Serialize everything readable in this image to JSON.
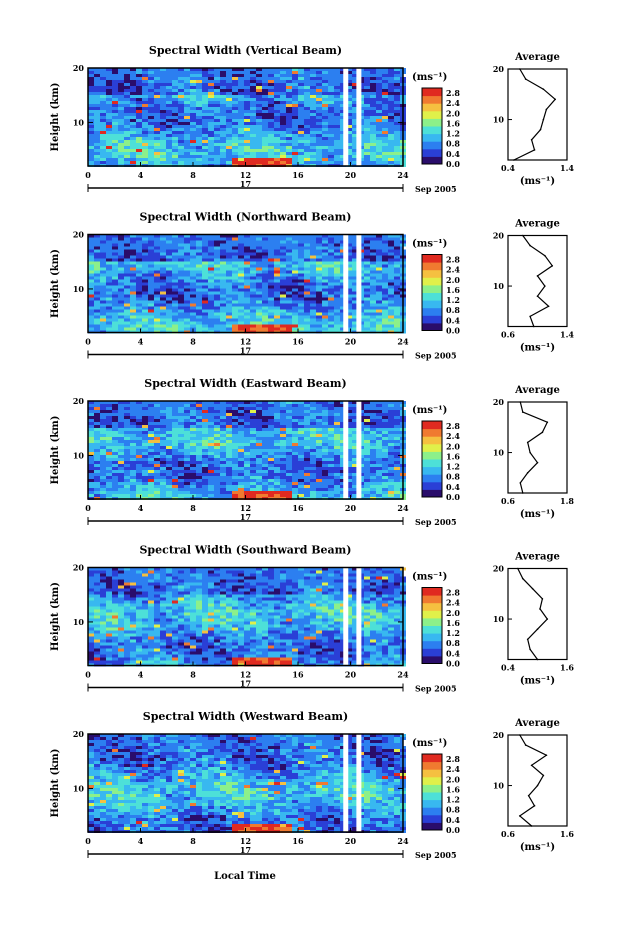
{
  "figure": {
    "xlabel": "Local Time",
    "ylabel": "Height (km)",
    "date_label": "17",
    "month_label": "Sep 2005",
    "colorbar_unit": "(ms⁻¹)",
    "colorbar_ticks": [
      "2.8",
      "2.4",
      "2.0",
      "1.6",
      "1.2",
      "0.8",
      "0.4",
      "0.0"
    ],
    "profile_title": "Average",
    "profile_xlabel": "(ms⁻¹)",
    "colormap": [
      "#2a0d6b",
      "#2a3fd6",
      "#2c7ff0",
      "#38b8f0",
      "#4de0d8",
      "#8cf08a",
      "#e0f04a",
      "#f5c040",
      "#f07a30",
      "#e02a20"
    ]
  },
  "chart_data": [
    {
      "type": "heatmap",
      "title": "Spectral Width (Vertical Beam)",
      "x": {
        "label": "Local Time",
        "range": [
          0,
          24
        ],
        "ticks": [
          0,
          4,
          8,
          12,
          16,
          20,
          24
        ]
      },
      "y": {
        "label": "Height (km)",
        "range": [
          2,
          20
        ],
        "ticks": [
          10,
          20
        ]
      },
      "colorbar": {
        "label": "(ms⁻¹)",
        "range": [
          0,
          3.0
        ],
        "ticks": [
          0.0,
          0.4,
          0.8,
          1.2,
          1.6,
          2.0,
          2.4,
          2.8
        ]
      },
      "data_gap_hours": [
        19.6,
        20.6
      ],
      "profile": {
        "title": "Average",
        "xlabel": "(ms⁻¹)",
        "x_ticks": [
          "0.4",
          "1.4"
        ],
        "y_ticks": [
          10,
          20
        ],
        "xrange": [
          0.4,
          1.4
        ],
        "heights": [
          2,
          4,
          6,
          8,
          10,
          12,
          14,
          16,
          18,
          20
        ],
        "values": [
          0.5,
          0.85,
          0.8,
          0.95,
          1.0,
          1.05,
          1.2,
          1.0,
          0.7,
          0.6
        ]
      }
    },
    {
      "type": "heatmap",
      "title": "Spectral Width (Northward Beam)",
      "x": {
        "label": "Local Time",
        "range": [
          0,
          24
        ],
        "ticks": [
          0,
          4,
          8,
          12,
          16,
          20,
          24
        ]
      },
      "y": {
        "label": "Height (km)",
        "range": [
          2,
          20
        ],
        "ticks": [
          10,
          20
        ]
      },
      "colorbar": {
        "label": "(ms⁻¹)",
        "range": [
          0,
          3.0
        ],
        "ticks": [
          0.0,
          0.4,
          0.8,
          1.2,
          1.6,
          2.0,
          2.4,
          2.8
        ]
      },
      "data_gap_hours": [
        19.6,
        20.6
      ],
      "profile": {
        "title": "Average",
        "xlabel": "(ms⁻¹)",
        "x_ticks": [
          "0.6",
          "1.4"
        ],
        "y_ticks": [
          10,
          20
        ],
        "xrange": [
          0.6,
          1.4
        ],
        "heights": [
          2,
          4,
          6,
          8,
          10,
          12,
          14,
          16,
          18,
          20
        ],
        "values": [
          0.95,
          0.9,
          1.15,
          1.0,
          1.1,
          1.0,
          1.2,
          1.1,
          0.9,
          0.8
        ]
      }
    },
    {
      "type": "heatmap",
      "title": "Spectral Width (Eastward Beam)",
      "x": {
        "label": "Local Time",
        "range": [
          0,
          24
        ],
        "ticks": [
          0,
          4,
          8,
          12,
          16,
          20,
          24
        ]
      },
      "y": {
        "label": "Height (km)",
        "range": [
          2,
          20
        ],
        "ticks": [
          10,
          20
        ]
      },
      "colorbar": {
        "label": "(ms⁻¹)",
        "range": [
          0,
          3.0
        ],
        "ticks": [
          0.0,
          0.4,
          0.8,
          1.2,
          1.6,
          2.0,
          2.4,
          2.8
        ]
      },
      "data_gap_hours": [
        19.6,
        20.6
      ],
      "profile": {
        "title": "Average",
        "xlabel": "(ms⁻¹)",
        "x_ticks": [
          "0.6",
          "1.8"
        ],
        "y_ticks": [
          10,
          20
        ],
        "xrange": [
          0.6,
          1.8
        ],
        "heights": [
          2,
          4,
          6,
          8,
          10,
          12,
          14,
          16,
          18,
          20
        ],
        "values": [
          0.9,
          0.85,
          1.0,
          1.2,
          1.05,
          1.0,
          1.3,
          1.4,
          0.9,
          0.85
        ]
      }
    },
    {
      "type": "heatmap",
      "title": "Spectral Width (Southward Beam)",
      "x": {
        "label": "Local Time",
        "range": [
          0,
          24
        ],
        "ticks": [
          0,
          4,
          8,
          12,
          16,
          20,
          24
        ]
      },
      "y": {
        "label": "Height (km)",
        "range": [
          2,
          20
        ],
        "ticks": [
          10,
          20
        ]
      },
      "colorbar": {
        "label": "(ms⁻¹)",
        "range": [
          0,
          3.0
        ],
        "ticks": [
          0.0,
          0.4,
          0.8,
          1.2,
          1.6,
          2.0,
          2.4,
          2.8
        ]
      },
      "data_gap_hours": [
        19.6,
        20.6
      ],
      "profile": {
        "title": "Average",
        "xlabel": "(ms⁻¹)",
        "x_ticks": [
          "0.4",
          "1.6"
        ],
        "y_ticks": [
          10,
          20
        ],
        "xrange": [
          0.4,
          1.6
        ],
        "heights": [
          2,
          4,
          6,
          8,
          10,
          12,
          14,
          16,
          18,
          20
        ],
        "values": [
          1.0,
          0.85,
          0.8,
          1.0,
          1.2,
          1.05,
          1.1,
          0.9,
          0.7,
          0.6
        ]
      }
    },
    {
      "type": "heatmap",
      "title": "Spectral Width (Westward Beam)",
      "x": {
        "label": "Local Time",
        "range": [
          0,
          24
        ],
        "ticks": [
          0,
          4,
          8,
          12,
          16,
          20,
          24
        ]
      },
      "y": {
        "label": "Height (km)",
        "range": [
          2,
          20
        ],
        "ticks": [
          10,
          20
        ]
      },
      "colorbar": {
        "label": "(ms⁻¹)",
        "range": [
          0,
          3.0
        ],
        "ticks": [
          0.0,
          0.4,
          0.8,
          1.2,
          1.6,
          2.0,
          2.4,
          2.8
        ]
      },
      "data_gap_hours": [
        19.6,
        20.6
      ],
      "profile": {
        "title": "Average",
        "xlabel": "(ms⁻¹)",
        "x_ticks": [
          "0.6",
          "1.6"
        ],
        "y_ticks": [
          10,
          20
        ],
        "xrange": [
          0.6,
          1.6
        ],
        "heights": [
          2,
          4,
          6,
          8,
          10,
          12,
          14,
          16,
          18,
          20
        ],
        "values": [
          1.0,
          0.8,
          1.05,
          0.95,
          1.1,
          1.2,
          1.0,
          1.25,
          0.9,
          0.8
        ]
      }
    }
  ]
}
